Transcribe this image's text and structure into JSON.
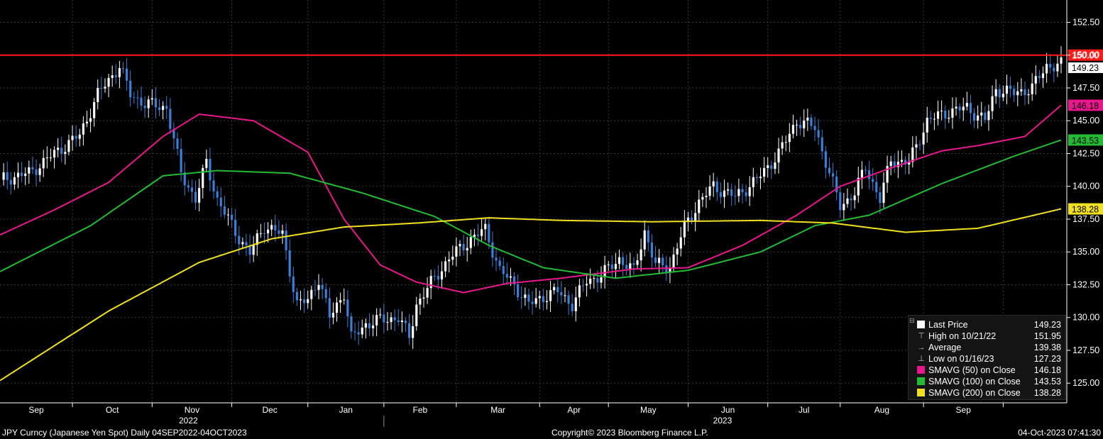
{
  "chart_data": {
    "type": "line",
    "subtype": "candlestick",
    "instrument": "JPY Curncy (Japanese Yen Spot)",
    "frequency": "Daily",
    "date_range": "04SEP2022-04OCT2023",
    "ylim": [
      123.5,
      154.2
    ],
    "y_ticks": [
      "152.50",
      "150.00",
      "147.50",
      "145.00",
      "142.50",
      "140.00",
      "137.50",
      "135.00",
      "132.50",
      "130.00",
      "127.50",
      "125.00"
    ],
    "x_month_labels": [
      "Sep",
      "Oct",
      "Nov",
      "Dec",
      "Jan",
      "Feb",
      "Mar",
      "Apr",
      "May",
      "Jun",
      "Jul",
      "Aug",
      "Sep"
    ],
    "x_year_labels": [
      "2022",
      "2023"
    ],
    "grid": true,
    "reference_line": {
      "value": 150.0,
      "label": "150.00",
      "color": "#ff1a1a"
    },
    "last_price": {
      "value": 149.23,
      "label": "149.23"
    },
    "series": [
      {
        "name": "SMAVG (50) on Close",
        "color": "#e8188c",
        "end_label": "146.18",
        "values": [
          [
            0,
            136.3
          ],
          [
            15,
            138.2
          ],
          [
            30,
            140.3
          ],
          [
            45,
            143.8
          ],
          [
            55,
            145.5
          ],
          [
            70,
            145.0
          ],
          [
            85,
            142.6
          ],
          [
            95,
            137.5
          ],
          [
            105,
            134.0
          ],
          [
            115,
            132.7
          ],
          [
            128,
            131.9
          ],
          [
            140,
            132.6
          ],
          [
            155,
            133.0
          ],
          [
            175,
            133.7
          ],
          [
            190,
            133.8
          ],
          [
            205,
            135.5
          ],
          [
            220,
            137.8
          ],
          [
            232,
            140.0
          ],
          [
            245,
            141.3
          ],
          [
            260,
            142.7
          ],
          [
            270,
            143.1
          ],
          [
            283,
            143.8
          ],
          [
            293,
            146.18
          ]
        ]
      },
      {
        "name": "SMAVG (100) on Close",
        "color": "#22bb33",
        "end_label": "143.53",
        "values": [
          [
            0,
            133.5
          ],
          [
            25,
            137.0
          ],
          [
            45,
            140.8
          ],
          [
            60,
            141.2
          ],
          [
            80,
            141.0
          ],
          [
            100,
            139.5
          ],
          [
            120,
            137.7
          ],
          [
            135,
            135.5
          ],
          [
            150,
            133.8
          ],
          [
            170,
            133.0
          ],
          [
            190,
            133.6
          ],
          [
            210,
            135.0
          ],
          [
            225,
            137.0
          ],
          [
            240,
            137.8
          ],
          [
            260,
            140.2
          ],
          [
            280,
            142.3
          ],
          [
            293,
            143.53
          ]
        ]
      },
      {
        "name": "SMAVG (200) on Close",
        "color": "#f0e020",
        "end_label": "138.28",
        "values": [
          [
            0,
            125.2
          ],
          [
            30,
            130.5
          ],
          [
            55,
            134.2
          ],
          [
            75,
            136.0
          ],
          [
            95,
            136.9
          ],
          [
            115,
            137.2
          ],
          [
            135,
            137.6
          ],
          [
            155,
            137.4
          ],
          [
            180,
            137.3
          ],
          [
            210,
            137.4
          ],
          [
            230,
            137.2
          ],
          [
            250,
            136.5
          ],
          [
            270,
            136.8
          ],
          [
            293,
            138.28
          ]
        ]
      }
    ],
    "close_path": [
      [
        0,
        140.5
      ],
      [
        8,
        141.0
      ],
      [
        15,
        142.5
      ],
      [
        22,
        143.9
      ],
      [
        27,
        147.0
      ],
      [
        33,
        149.2
      ],
      [
        36,
        147.0
      ],
      [
        40,
        146.3
      ],
      [
        46,
        146.0
      ],
      [
        50,
        141.0
      ],
      [
        54,
        139.0
      ],
      [
        57,
        141.8
      ],
      [
        60,
        139.0
      ],
      [
        65,
        136.5
      ],
      [
        69,
        134.9
      ],
      [
        73,
        137.0
      ],
      [
        78,
        136.3
      ],
      [
        82,
        131.0
      ],
      [
        85,
        131.3
      ],
      [
        88,
        133.0
      ],
      [
        91,
        130.0
      ],
      [
        95,
        131.9
      ],
      [
        97,
        128.4
      ],
      [
        101,
        129.5
      ],
      [
        105,
        129.8
      ],
      [
        110,
        130.0
      ],
      [
        113,
        128.5
      ],
      [
        115,
        131.0
      ],
      [
        120,
        133.0
      ],
      [
        124,
        134.5
      ],
      [
        130,
        136.0
      ],
      [
        134,
        136.7
      ],
      [
        138,
        133.6
      ],
      [
        142,
        132.5
      ],
      [
        146,
        131.0
      ],
      [
        150,
        131.6
      ],
      [
        154,
        132.0
      ],
      [
        158,
        131.0
      ],
      [
        162,
        132.8
      ],
      [
        166,
        133.2
      ],
      [
        171,
        134.5
      ],
      [
        175,
        133.5
      ],
      [
        178,
        136.6
      ],
      [
        181,
        134.0
      ],
      [
        185,
        133.9
      ],
      [
        189,
        136.9
      ],
      [
        193,
        138.8
      ],
      [
        197,
        140.0
      ],
      [
        203,
        139.2
      ],
      [
        209,
        140.5
      ],
      [
        215,
        142.5
      ],
      [
        220,
        145.0
      ],
      [
        225,
        144.5
      ],
      [
        229,
        141.0
      ],
      [
        232,
        138.5
      ],
      [
        236,
        139.5
      ],
      [
        239,
        141.5
      ],
      [
        243,
        139.0
      ],
      [
        246,
        142.0
      ],
      [
        251,
        141.8
      ],
      [
        256,
        145.0
      ],
      [
        262,
        145.7
      ],
      [
        267,
        146.0
      ],
      [
        272,
        145.0
      ],
      [
        275,
        147.4
      ],
      [
        280,
        147.1
      ],
      [
        285,
        147.5
      ],
      [
        289,
        149.2
      ],
      [
        293,
        149.23
      ]
    ],
    "last_price_entry": {
      "name": "Last Price",
      "value": "149.23",
      "color": "#ffffff"
    },
    "high_entry": {
      "name": "High on 10/21/22",
      "value": "151.95"
    },
    "average_entry": {
      "name": "Average",
      "value": "139.38"
    },
    "low_entry": {
      "name": "Low on 01/16/23",
      "value": "127.23"
    }
  },
  "footer": {
    "left": "JPY Curncy (Japanese Yen Spot)  Daily 04SEP2022-04OCT2023",
    "center": "Copyright© 2023 Bloomberg Finance L.P.",
    "right": "04-Oct-2023 07:41:30"
  },
  "legend": {
    "collapse_glyph": "⊟",
    "rows": [
      {
        "label": "Last Price",
        "value": "149.23",
        "kind": "swatch",
        "color": "#ffffff"
      },
      {
        "label": "High on 10/21/22",
        "value": "151.95",
        "kind": "glyph",
        "glyph": "⊤"
      },
      {
        "label": "Average",
        "value": "139.38",
        "kind": "glyph",
        "glyph": "→"
      },
      {
        "label": "Low on 01/16/23",
        "value": "127.23",
        "kind": "glyph",
        "glyph": "⊥"
      },
      {
        "label": "SMAVG (50)  on Close",
        "value": "146.18",
        "kind": "swatch",
        "color": "#e8188c"
      },
      {
        "label": "SMAVG (100)  on Close",
        "value": "143.53",
        "kind": "swatch",
        "color": "#22bb33"
      },
      {
        "label": "SMAVG (200)  on Close",
        "value": "138.28",
        "kind": "swatch",
        "color": "#f0e020"
      }
    ]
  },
  "colors": {
    "background": "#000000",
    "grid": "#3a3a3a",
    "axis_text": "#ffffff",
    "candle_up": "#ffffff",
    "candle_down": "#3a7fd8"
  }
}
